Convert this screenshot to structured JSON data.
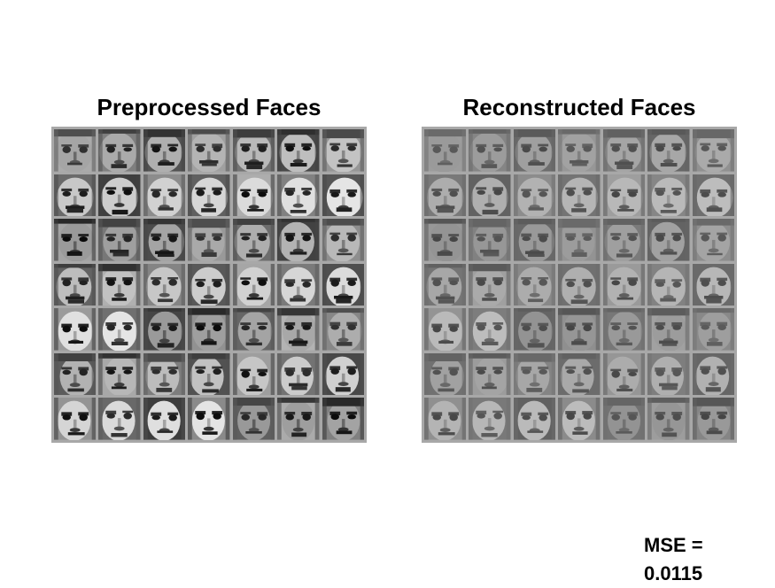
{
  "panels": {
    "left": {
      "title": "Preprocessed Faces",
      "rows": 7,
      "cols": 7,
      "style": "high-contrast"
    },
    "right": {
      "title": "Reconstructed Faces",
      "rows": 7,
      "cols": 7,
      "style": "smoothed"
    }
  },
  "mse": {
    "label": "MSE =",
    "value": "0.0115"
  },
  "colors": {
    "grid_border": "#a8a8a8",
    "background": "#ffffff"
  }
}
